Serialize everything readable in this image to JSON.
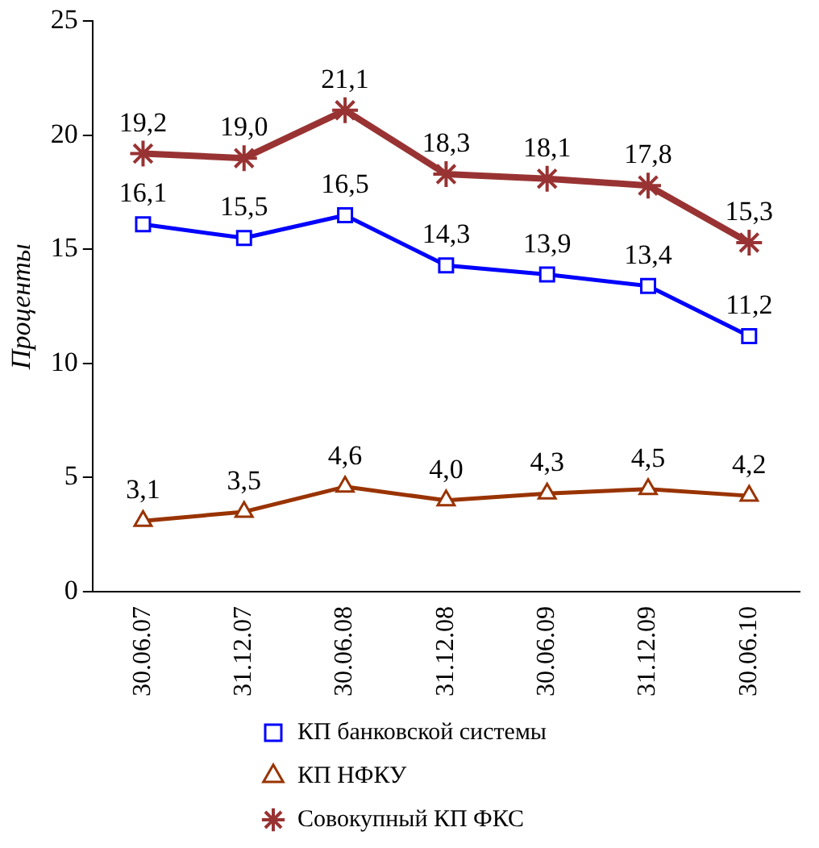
{
  "chart_data": {
    "type": "line",
    "ylabel": "Проценты",
    "categories": [
      "30.06.07",
      "31.12.07",
      "30.06.08",
      "31.12.08",
      "30.06.09",
      "31.12.09",
      "30.06.10"
    ],
    "series": [
      {
        "name": "КП банковской системы",
        "color": "#0000ff",
        "marker": "square",
        "values": [
          16.1,
          15.5,
          16.5,
          14.3,
          13.9,
          13.4,
          11.2
        ],
        "value_labels": [
          "16,1",
          "15,5",
          "16,5",
          "14,3",
          "13,9",
          "13,4",
          "11,2"
        ]
      },
      {
        "name": "КП НФКУ",
        "color": "#993300",
        "marker": "triangle",
        "values": [
          3.1,
          3.5,
          4.6,
          4.0,
          4.3,
          4.5,
          4.2
        ],
        "value_labels": [
          "3,1",
          "3,5",
          "4,6",
          "4,0",
          "4,3",
          "4,5",
          "4,2"
        ]
      },
      {
        "name": "Совокупный КП ФКС",
        "color": "#993333",
        "marker": "cross",
        "values": [
          19.2,
          19.0,
          21.1,
          18.3,
          18.1,
          17.8,
          15.3
        ],
        "value_labels": [
          "19,2",
          "19,0",
          "21,1",
          "18,3",
          "18,1",
          "17,8",
          "15,3"
        ]
      }
    ],
    "ylim": [
      0,
      25
    ],
    "yticks": [
      0,
      5,
      10,
      15,
      20,
      25
    ],
    "grid": false,
    "legend": "bottom"
  }
}
